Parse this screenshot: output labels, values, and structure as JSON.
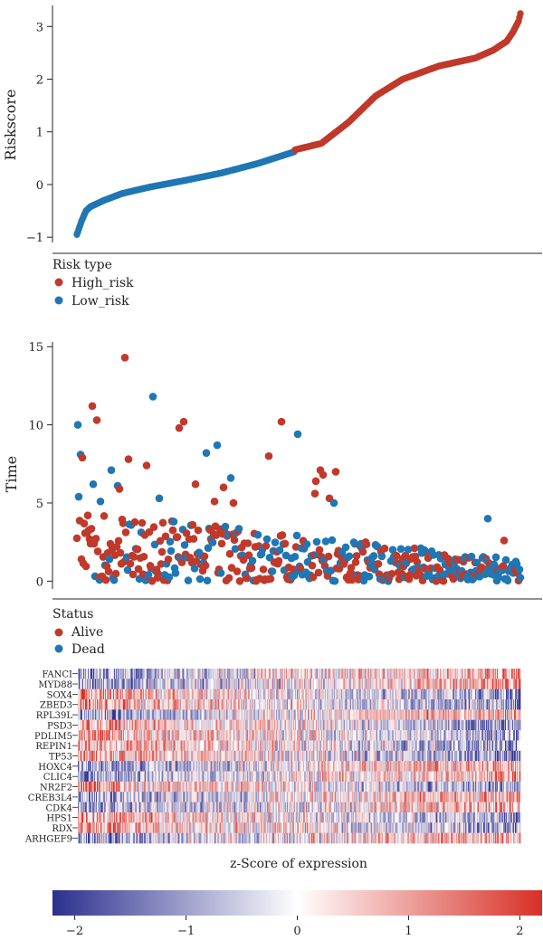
{
  "colors": {
    "high_risk": "#C0392B",
    "low_risk": "#1F77B4",
    "alive": "#C0392B",
    "dead": "#1F77B4",
    "scale_low": "#2B2F8E",
    "scale_mid": "#FFFFFF",
    "scale_high": "#D73027"
  },
  "chart_data": [
    {
      "type": "scatter",
      "panel": "risk-score",
      "title": "",
      "xlabel": "",
      "ylabel": "Riskscore",
      "ylim": [
        -1.1,
        3.4
      ],
      "yticks": [
        -1,
        0,
        1,
        2,
        3
      ],
      "n_samples": 491,
      "cutoff_index": 241,
      "curve_x": [
        0,
        5,
        10,
        15,
        30,
        50,
        80,
        120,
        160,
        200,
        240,
        241,
        270,
        300,
        330,
        360,
        400,
        440,
        460,
        475,
        482,
        488,
        491
      ],
      "curve_y": [
        -0.95,
        -0.7,
        -0.5,
        -0.42,
        -0.3,
        -0.17,
        -0.05,
        0.08,
        0.22,
        0.4,
        0.62,
        0.66,
        0.78,
        1.18,
        1.68,
        2.0,
        2.25,
        2.4,
        2.55,
        2.72,
        2.9,
        3.1,
        3.32
      ],
      "legend_title": "Risk type",
      "legend": [
        "High_risk",
        "Low_risk"
      ],
      "legend_placement": "bottom-left"
    },
    {
      "type": "scatter",
      "panel": "survival-time",
      "title": "",
      "xlabel": "",
      "ylabel": "Time",
      "ylim": [
        -0.5,
        15.3
      ],
      "yticks": [
        0,
        5,
        10,
        15
      ],
      "n_samples": 491,
      "legend_title": "Status",
      "legend": [
        "Alive",
        "Dead"
      ],
      "legend_placement": "bottom-left",
      "highlight_points": [
        {
          "x": 53,
          "y": 14.3,
          "status": "Alive"
        },
        {
          "x": 84,
          "y": 11.8,
          "status": "Dead"
        },
        {
          "x": 17,
          "y": 11.2,
          "status": "Alive"
        },
        {
          "x": 22,
          "y": 10.3,
          "status": "Alive"
        },
        {
          "x": 118,
          "y": 10.2,
          "status": "Alive"
        },
        {
          "x": 113,
          "y": 9.8,
          "status": "Alive"
        },
        {
          "x": 226,
          "y": 10.2,
          "status": "Alive"
        },
        {
          "x": 244,
          "y": 9.4,
          "status": "Dead"
        },
        {
          "x": 1,
          "y": 10.0,
          "status": "Dead"
        },
        {
          "x": 4,
          "y": 8.1,
          "status": "Dead"
        },
        {
          "x": 6,
          "y": 7.9,
          "status": "Alive"
        },
        {
          "x": 155,
          "y": 8.7,
          "status": "Dead"
        },
        {
          "x": 143,
          "y": 8.2,
          "status": "Dead"
        },
        {
          "x": 212,
          "y": 8.0,
          "status": "Alive"
        },
        {
          "x": 57,
          "y": 7.8,
          "status": "Alive"
        },
        {
          "x": 77,
          "y": 7.4,
          "status": "Alive"
        },
        {
          "x": 38,
          "y": 7.1,
          "status": "Dead"
        },
        {
          "x": 269,
          "y": 7.1,
          "status": "Alive"
        },
        {
          "x": 286,
          "y": 7.0,
          "status": "Alive"
        },
        {
          "x": 272,
          "y": 6.8,
          "status": "Alive"
        },
        {
          "x": 170,
          "y": 6.6,
          "status": "Dead"
        },
        {
          "x": 264,
          "y": 6.4,
          "status": "Alive"
        },
        {
          "x": 131,
          "y": 6.2,
          "status": "Alive"
        },
        {
          "x": 18,
          "y": 6.2,
          "status": "Dead"
        },
        {
          "x": 45,
          "y": 6.1,
          "status": "Dead"
        },
        {
          "x": 162,
          "y": 6.0,
          "status": "Alive"
        },
        {
          "x": 47,
          "y": 5.9,
          "status": "Alive"
        },
        {
          "x": 263,
          "y": 5.6,
          "status": "Alive"
        },
        {
          "x": 2,
          "y": 5.4,
          "status": "Dead"
        },
        {
          "x": 91,
          "y": 5.3,
          "status": "Dead"
        },
        {
          "x": 279,
          "y": 5.3,
          "status": "Alive"
        },
        {
          "x": 26,
          "y": 5.1,
          "status": "Dead"
        },
        {
          "x": 152,
          "y": 5.1,
          "status": "Alive"
        },
        {
          "x": 173,
          "y": 5.0,
          "status": "Alive"
        },
        {
          "x": 284,
          "y": 5.0,
          "status": "Dead"
        },
        {
          "x": 454,
          "y": 4.0,
          "status": "Dead"
        },
        {
          "x": 472,
          "y": 2.6,
          "status": "Alive"
        }
      ]
    },
    {
      "type": "heatmap",
      "panel": "expression",
      "title": "",
      "xlabel": "z-Score of expression",
      "genes": [
        "FANCI",
        "MYD88",
        "SOX4",
        "ZBED3",
        "RPL39L",
        "PSD3",
        "PDLIM5",
        "REPIN1",
        "TP53",
        "HOXC4",
        "CLIC4",
        "NR2F2",
        "CREB3L4",
        "CDK4",
        "HPS1",
        "RDX",
        "ARHGEF9"
      ],
      "n_samples": 491,
      "zlim": [
        -2.2,
        2.2
      ],
      "colorbar_ticks": [
        -2,
        -1,
        0,
        1,
        2
      ],
      "colorbar_labels": [
        "−2",
        "−1",
        "0",
        "1",
        "2"
      ],
      "trend": [
        1,
        1,
        -1,
        -1,
        1,
        -1,
        -1,
        -1,
        -1,
        1,
        1,
        -1,
        1,
        1,
        -1,
        -1,
        1
      ]
    }
  ]
}
